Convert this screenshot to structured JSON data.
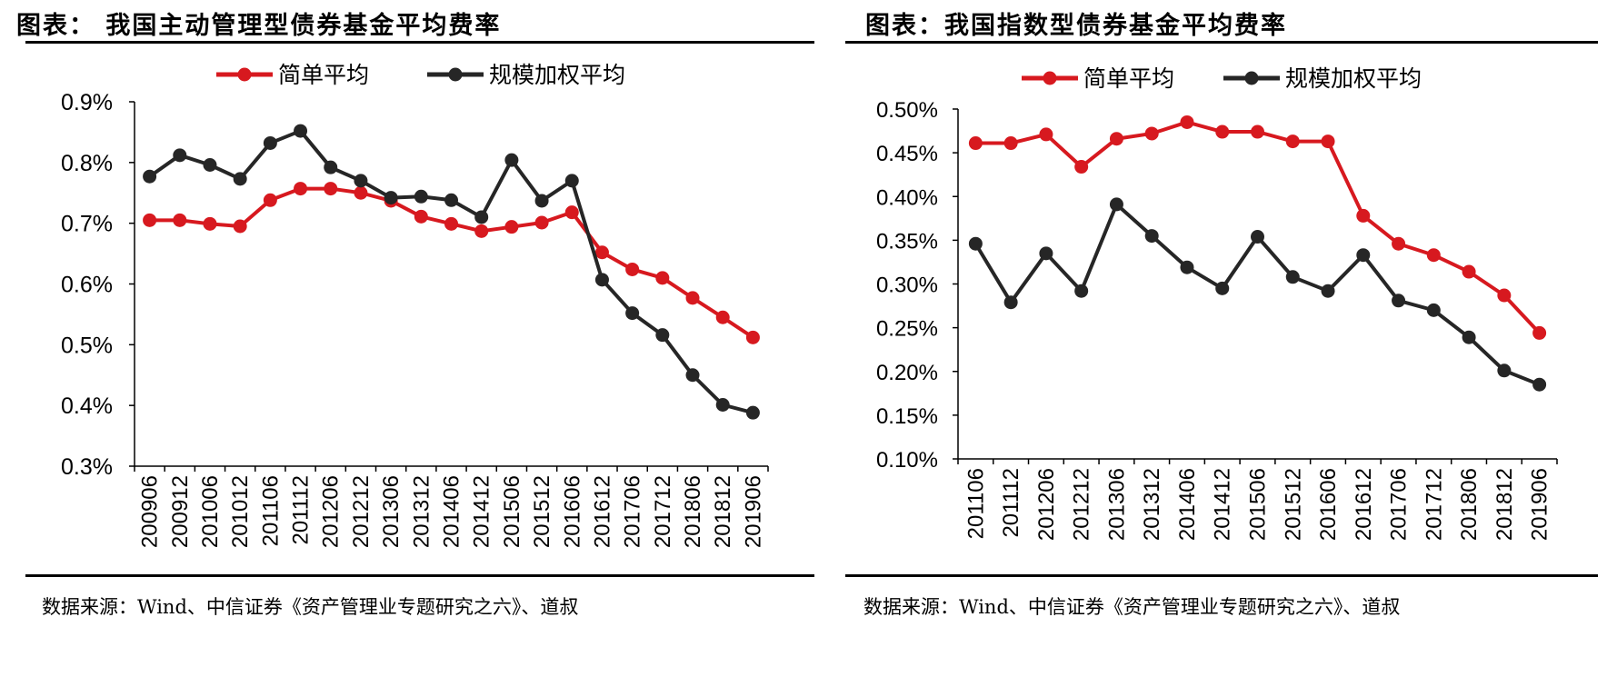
{
  "left": {
    "title": "图表：  我国主动管理型债券基金平均费率",
    "source": "数据来源：Wind、中信证券《资产管理业专题研究之六》、道叔"
  },
  "right": {
    "title": "图表：我国指数型债券基金平均费率",
    "source": "数据来源：Wind、中信证券《资产管理业专题研究之六》、道叔"
  },
  "colors": {
    "red": "#d7191f",
    "black": "#262626"
  },
  "chart_data": [
    {
      "type": "line",
      "title": "我国主动管理型债券基金平均费率",
      "categories": [
        "200906",
        "200912",
        "201006",
        "201012",
        "201106",
        "201112",
        "201206",
        "201212",
        "201306",
        "201312",
        "201406",
        "201412",
        "201506",
        "201512",
        "201606",
        "201612",
        "201706",
        "201712",
        "201806",
        "201812",
        "201906"
      ],
      "series": [
        {
          "name": "简单平均",
          "color": "#d7191f",
          "values": [
            0.705,
            0.705,
            0.699,
            0.695,
            0.738,
            0.757,
            0.757,
            0.75,
            0.737,
            0.711,
            0.699,
            0.687,
            0.694,
            0.701,
            0.718,
            0.652,
            0.624,
            0.61,
            0.577,
            0.545,
            0.512
          ]
        },
        {
          "name": "规模加权平均",
          "color": "#262626",
          "values": [
            0.777,
            0.812,
            0.796,
            0.773,
            0.832,
            0.852,
            0.792,
            0.77,
            0.742,
            0.744,
            0.738,
            0.71,
            0.804,
            0.737,
            0.77,
            0.607,
            0.552,
            0.516,
            0.45,
            0.401,
            0.388
          ]
        }
      ],
      "ylim": [
        0.3,
        0.9
      ],
      "yticks": [
        "0.3%",
        "0.4%",
        "0.5%",
        "0.6%",
        "0.7%",
        "0.8%",
        "0.9%"
      ],
      "ytick_values": [
        0.3,
        0.4,
        0.5,
        0.6,
        0.7,
        0.8,
        0.9
      ],
      "legend": "top-center",
      "grid": false
    },
    {
      "type": "line",
      "title": "我国指数型债券基金平均费率",
      "categories": [
        "201106",
        "201112",
        "201206",
        "201212",
        "201306",
        "201312",
        "201406",
        "201412",
        "201506",
        "201512",
        "201606",
        "201612",
        "201706",
        "201712",
        "201806",
        "201812",
        "201906"
      ],
      "series": [
        {
          "name": "简单平均",
          "color": "#d7191f",
          "values": [
            0.461,
            0.461,
            0.471,
            0.434,
            0.466,
            0.472,
            0.485,
            0.474,
            0.474,
            0.463,
            0.463,
            0.378,
            0.346,
            0.333,
            0.314,
            0.287,
            0.244
          ]
        },
        {
          "name": "规模加权平均",
          "color": "#262626",
          "values": [
            0.346,
            0.279,
            0.335,
            0.292,
            0.391,
            0.355,
            0.319,
            0.295,
            0.354,
            0.308,
            0.292,
            0.333,
            0.281,
            0.27,
            0.239,
            0.201,
            0.185
          ]
        }
      ],
      "ylim": [
        0.1,
        0.5
      ],
      "yticks": [
        "0.10%",
        "0.15%",
        "0.20%",
        "0.25%",
        "0.30%",
        "0.35%",
        "0.40%",
        "0.45%",
        "0.50%"
      ],
      "ytick_values": [
        0.1,
        0.15,
        0.2,
        0.25,
        0.3,
        0.35,
        0.4,
        0.45,
        0.5
      ],
      "legend": "top-center",
      "grid": false
    }
  ]
}
